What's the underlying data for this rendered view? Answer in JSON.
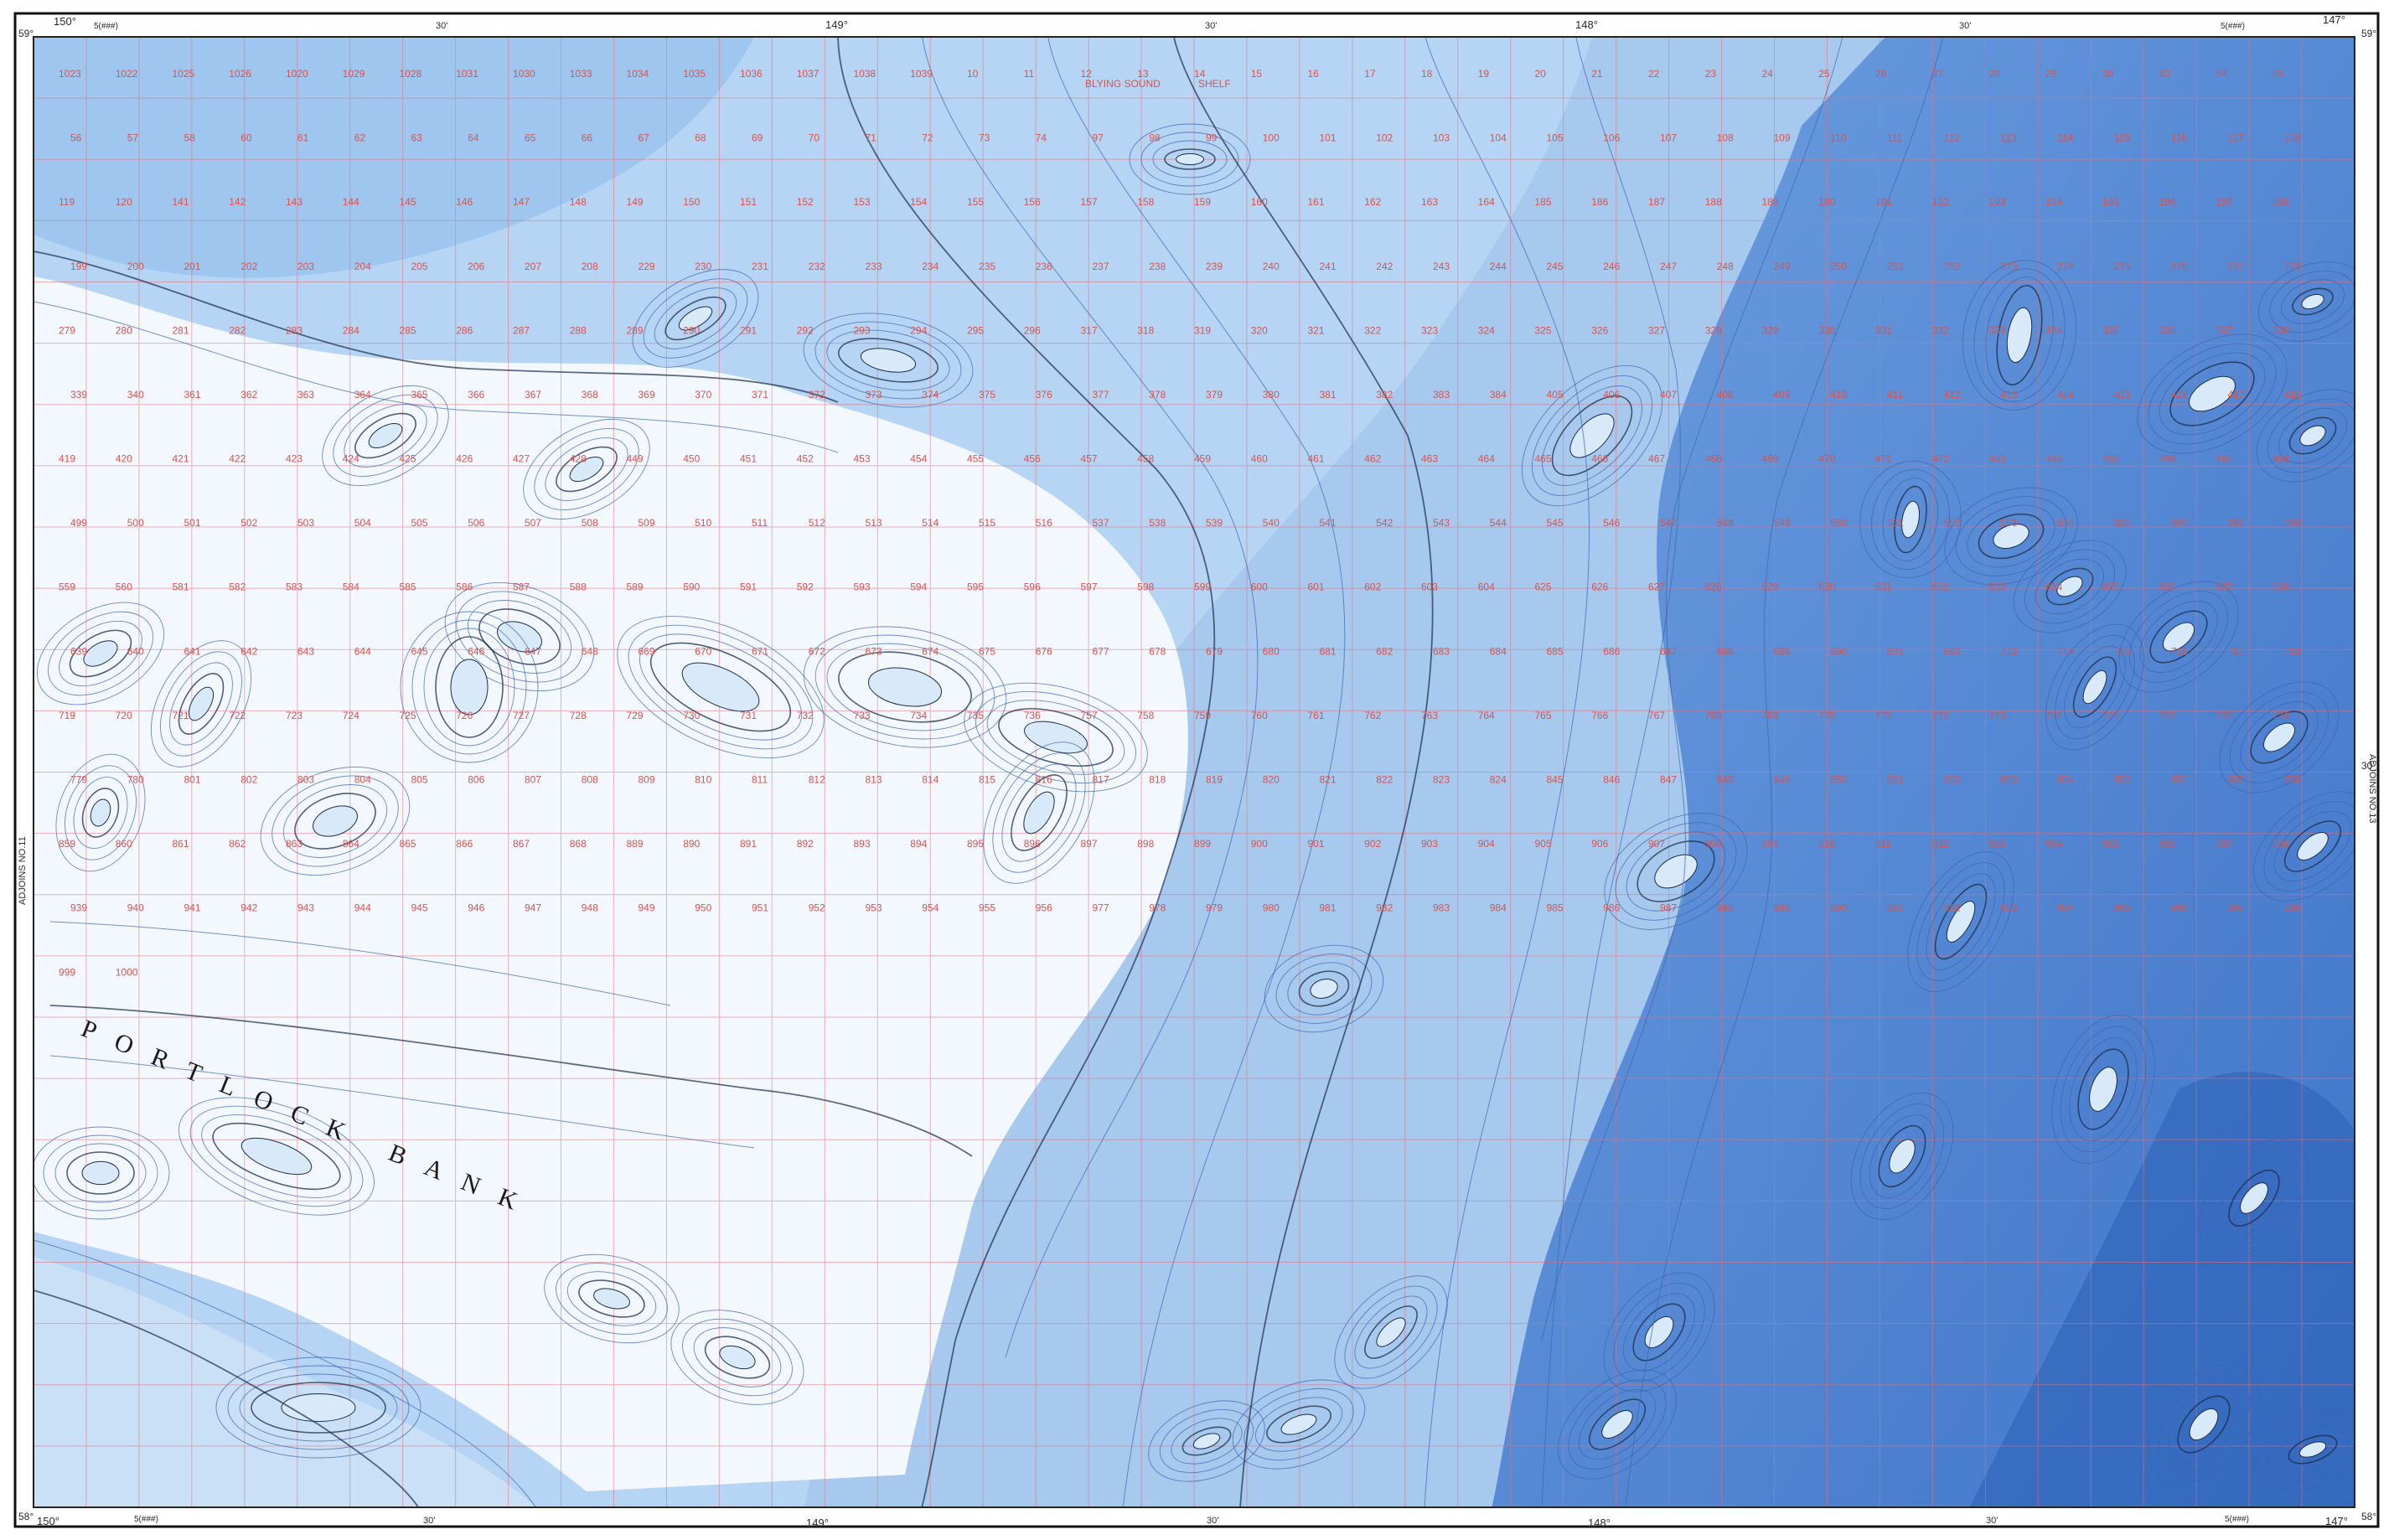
{
  "map": {
    "feature_label": "PORTLOCK BANK",
    "inlet_label_line1": "BLYING SOUND",
    "inlet_label_line2": "SHELF",
    "top_corner_left": "150°",
    "top_corner_left_lat": "59°",
    "top_corner_right": "147°",
    "top_corner_right_lat": "59°",
    "top_lon_mid_1": "149°",
    "top_lon_mid_2": "148°",
    "top_minute_1": "30'",
    "top_minute_2": "30'",
    "top_minute_3": "30'",
    "bottom_corner_left": "150°",
    "bottom_corner_left_lat": "58°",
    "bottom_corner_right": "147°",
    "bottom_corner_right_lat": "58°",
    "bottom_lon_mid_1": "149°",
    "bottom_lon_mid_2": "148°",
    "bottom_minute_1": "30'",
    "bottom_minute_2": "30'",
    "bottom_minute_3": "30'",
    "side_lat_mid": "30'",
    "grid_ref_top_left": "5(###)",
    "grid_ref_top_right": "5(###)",
    "grid_ref_bottom_left": "5(###)",
    "grid_ref_bottom_right": "5(###)",
    "left_margin_text": "ADJOINS NO.11",
    "right_margin_text": "ADJOINS NO.13",
    "colors": {
      "deep": "#4f86d6",
      "mid": "#8bb8e8",
      "shallow": "#c7dff5",
      "bank": "#f7fbff",
      "grid": "#e45a6a",
      "contour_dark": "#1c2c4a",
      "contour_light": "#3c66b0"
    },
    "soundings": [
      "1023",
      "1022",
      "1025",
      "1026",
      "1020",
      "1029",
      "1028",
      "1031",
      "1030",
      "1033",
      "1034",
      "1035",
      "1036",
      "1037",
      "1038",
      "1039",
      "10",
      "11",
      "12",
      "13",
      "14",
      "15",
      "16",
      "17",
      "18",
      "19",
      "20",
      "21",
      "22",
      "23",
      "24",
      "25",
      "26",
      "27",
      "28",
      "29",
      "30",
      "53",
      "54",
      "55",
      "56",
      "57",
      "58",
      "60",
      "61",
      "62",
      "63",
      "64",
      "65",
      "66",
      "67",
      "68",
      "69",
      "70",
      "71",
      "72",
      "73",
      "74",
      "97",
      "98",
      "99",
      "100",
      "101",
      "102",
      "103",
      "104",
      "105",
      "106",
      "107",
      "108",
      "109",
      "110",
      "111",
      "112",
      "113",
      "114",
      "115",
      "116",
      "117",
      "118",
      "119",
      "120",
      "141",
      "142",
      "143",
      "144",
      "145",
      "146",
      "147",
      "148",
      "149",
      "150",
      "151",
      "152",
      "153",
      "154",
      "155",
      "156",
      "157",
      "158",
      "159",
      "160",
      "161",
      "162",
      "163",
      "164",
      "185",
      "186",
      "187",
      "188",
      "189",
      "190",
      "191",
      "192",
      "193",
      "194",
      "195",
      "196",
      "197",
      "198",
      "199",
      "200",
      "201",
      "202",
      "203",
      "204",
      "205",
      "206",
      "207",
      "208",
      "229",
      "230",
      "231",
      "232",
      "233",
      "234",
      "235",
      "236",
      "237",
      "238",
      "239",
      "240",
      "241",
      "242",
      "243",
      "244",
      "245",
      "246",
      "247",
      "248",
      "249",
      "250",
      "251",
      "252",
      "273",
      "274",
      "275",
      "276",
      "277",
      "278",
      "279",
      "280",
      "281",
      "282",
      "283",
      "284",
      "285",
      "286",
      "287",
      "288",
      "289",
      "290",
      "291",
      "292",
      "293",
      "294",
      "295",
      "296",
      "317",
      "318",
      "319",
      "320",
      "321",
      "322",
      "323",
      "324",
      "325",
      "326",
      "327",
      "328",
      "329",
      "330",
      "331",
      "332",
      "333",
      "334",
      "335",
      "336",
      "337",
      "338",
      "339",
      "340",
      "361",
      "362",
      "363",
      "364",
      "365",
      "366",
      "367",
      "368",
      "369",
      "370",
      "371",
      "372",
      "373",
      "374",
      "375",
      "376",
      "377",
      "378",
      "379",
      "380",
      "381",
      "382",
      "383",
      "384",
      "405",
      "406",
      "407",
      "408",
      "409",
      "410",
      "411",
      "412",
      "413",
      "414",
      "415",
      "416",
      "417",
      "418",
      "419",
      "420",
      "421",
      "422",
      "423",
      "424",
      "425",
      "426",
      "427",
      "428",
      "449",
      "450",
      "451",
      "452",
      "453",
      "454",
      "455",
      "456",
      "457",
      "458",
      "459",
      "460",
      "461",
      "462",
      "463",
      "464",
      "465",
      "466",
      "467",
      "468",
      "469",
      "470",
      "471",
      "472",
      "493",
      "494",
      "495",
      "496",
      "497",
      "498",
      "499",
      "500",
      "501",
      "502",
      "503",
      "504",
      "505",
      "506",
      "507",
      "508",
      "509",
      "510",
      "511",
      "512",
      "513",
      "514",
      "515",
      "516",
      "537",
      "538",
      "539",
      "540",
      "541",
      "542",
      "543",
      "544",
      "545",
      "546",
      "547",
      "548",
      "549",
      "550",
      "551",
      "552",
      "553",
      "554",
      "555",
      "556",
      "557",
      "558",
      "559",
      "560",
      "581",
      "582",
      "583",
      "584",
      "585",
      "586",
      "587",
      "588",
      "589",
      "590",
      "591",
      "592",
      "593",
      "594",
      "595",
      "596",
      "597",
      "598",
      "599",
      "600",
      "601",
      "602",
      "603",
      "604",
      "625",
      "626",
      "627",
      "628",
      "629",
      "630",
      "631",
      "632",
      "633",
      "634",
      "635",
      "636",
      "637",
      "638",
      "639",
      "640",
      "641",
      "642",
      "643",
      "644",
      "645",
      "646",
      "647",
      "648",
      "669",
      "670",
      "671",
      "672",
      "673",
      "674",
      "675",
      "676",
      "677",
      "678",
      "679",
      "680",
      "681",
      "682",
      "683",
      "684",
      "685",
      "686",
      "687",
      "688",
      "689",
      "690",
      "691",
      "692",
      "713",
      "714",
      "715",
      "716",
      "717",
      "718",
      "719",
      "720",
      "721",
      "722",
      "723",
      "724",
      "725",
      "726",
      "727",
      "728",
      "729",
      "730",
      "731",
      "732",
      "733",
      "734",
      "735",
      "736",
      "757",
      "758",
      "759",
      "760",
      "761",
      "762",
      "763",
      "764",
      "765",
      "766",
      "767",
      "768",
      "769",
      "770",
      "771",
      "772",
      "773",
      "774",
      "775",
      "776",
      "777",
      "778",
      "779",
      "780",
      "801",
      "802",
      "803",
      "804",
      "805",
      "806",
      "807",
      "808",
      "809",
      "810",
      "811",
      "812",
      "813",
      "814",
      "815",
      "816",
      "817",
      "818",
      "819",
      "820",
      "821",
      "822",
      "823",
      "824",
      "845",
      "846",
      "847",
      "848",
      "849",
      "850",
      "851",
      "852",
      "853",
      "854",
      "855",
      "856",
      "857",
      "858",
      "859",
      "860",
      "861",
      "862",
      "863",
      "864",
      "865",
      "866",
      "867",
      "868",
      "889",
      "890",
      "891",
      "892",
      "893",
      "894",
      "895",
      "896",
      "897",
      "898",
      "899",
      "900",
      "901",
      "902",
      "903",
      "904",
      "905",
      "906",
      "907",
      "908",
      "909",
      "910",
      "911",
      "912",
      "933",
      "934",
      "935",
      "936",
      "937",
      "938",
      "939",
      "940",
      "941",
      "942",
      "943",
      "944",
      "945",
      "946",
      "947",
      "948",
      "949",
      "950",
      "951",
      "952",
      "953",
      "954",
      "955",
      "956",
      "977",
      "978",
      "979",
      "980",
      "981",
      "982",
      "983",
      "984",
      "985",
      "986",
      "987",
      "988",
      "989",
      "990",
      "991",
      "992",
      "993",
      "994",
      "995",
      "996",
      "997",
      "998",
      "999",
      "1000"
    ]
  }
}
